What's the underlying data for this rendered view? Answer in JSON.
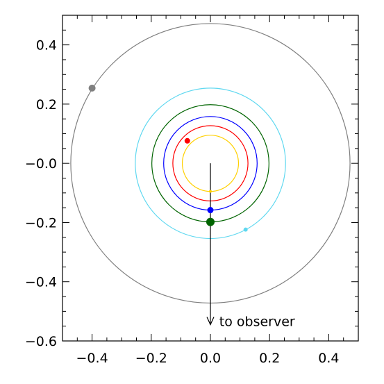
{
  "chart_data": {
    "type": "scatter",
    "title": "",
    "xlabel": "",
    "ylabel": "",
    "xlim": [
      -0.5,
      0.5
    ],
    "ylim": [
      -0.6,
      0.5
    ],
    "grid": false,
    "x_tick_labels": [
      "−0.4",
      "−0.2",
      "0.0",
      "0.2",
      "0.4"
    ],
    "y_tick_labels": [
      "−0.6",
      "−0.4",
      "−0.2",
      "−0.0",
      "0.2",
      "0.4"
    ],
    "orbits": [
      {
        "radius": 0.095,
        "color": "#ffd000"
      },
      {
        "radius": 0.127,
        "color": "#ff0000"
      },
      {
        "radius": 0.158,
        "color": "#0000ff"
      },
      {
        "radius": 0.198,
        "color": "#006400"
      },
      {
        "radius": 0.254,
        "color": "#5fd8f0"
      },
      {
        "radius": 0.472,
        "color": "#808080"
      }
    ],
    "planets": [
      {
        "x": 0.0,
        "y": -0.095,
        "color": "#ffd000",
        "size": 2
      },
      {
        "x": -0.078,
        "y": 0.076,
        "color": "#ff0000",
        "size": 4
      },
      {
        "x": 0.0,
        "y": -0.158,
        "color": "#0000ff",
        "size": 4.5
      },
      {
        "x": 0.0,
        "y": -0.198,
        "color": "#006400",
        "size": 6
      },
      {
        "x": 0.119,
        "y": -0.224,
        "color": "#5fd8f0",
        "size": 3
      },
      {
        "x": -0.4,
        "y": 0.254,
        "color": "#808080",
        "size": 5
      }
    ],
    "arrow": {
      "from": [
        0.0,
        0.0
      ],
      "to": [
        0.0,
        -0.545
      ]
    },
    "annotation": {
      "text": "to observer",
      "x": 0.03,
      "y": -0.535
    }
  }
}
